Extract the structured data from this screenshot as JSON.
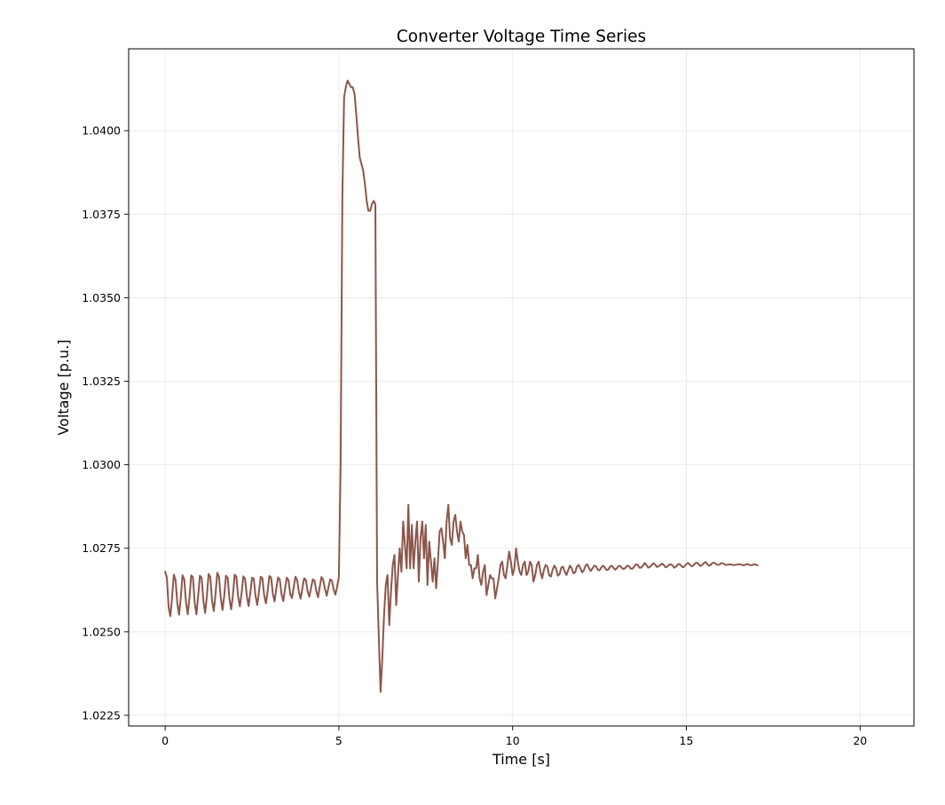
{
  "chart_data": {
    "type": "line",
    "title": "Converter Voltage Time Series",
    "xlabel": "Time [s]",
    "ylabel": "Voltage [p.u.]",
    "xlim": [
      -1.05,
      21.55
    ],
    "ylim": [
      1.02218,
      1.04245
    ],
    "xticks": [
      0,
      5,
      10,
      15,
      20
    ],
    "xtick_labels": [
      "0",
      "5",
      "10",
      "15",
      "20"
    ],
    "yticks": [
      1.0225,
      1.025,
      1.0275,
      1.03,
      1.0325,
      1.035,
      1.0375,
      1.04
    ],
    "ytick_labels": [
      "1.0225",
      "1.0250",
      "1.0275",
      "1.0300",
      "1.0325",
      "1.0350",
      "1.0375",
      "1.0400"
    ],
    "grid": true,
    "legend": "none",
    "x_step": 0.05,
    "series": [
      {
        "color": "#8c564b",
        "x_start": 0,
        "values": [
          1.0268,
          1.02662,
          1.02573,
          1.02547,
          1.02604,
          1.02671,
          1.02655,
          1.02586,
          1.02551,
          1.02603,
          1.02669,
          1.02657,
          1.02589,
          1.02552,
          1.02602,
          1.02669,
          1.02663,
          1.02588,
          1.02552,
          1.02607,
          1.02668,
          1.02662,
          1.02594,
          1.02556,
          1.02605,
          1.02673,
          1.02664,
          1.02593,
          1.02562,
          1.02613,
          1.02677,
          1.02665,
          1.02602,
          1.02565,
          1.02607,
          1.02668,
          1.02662,
          1.02599,
          1.02567,
          1.02609,
          1.02671,
          1.02665,
          1.02605,
          1.02576,
          1.02615,
          1.02666,
          1.02659,
          1.02608,
          1.02577,
          1.02615,
          1.02662,
          1.02659,
          1.02608,
          1.0258,
          1.02619,
          1.02665,
          1.0266,
          1.02609,
          1.02585,
          1.02622,
          1.02667,
          1.02662,
          1.02613,
          1.02591,
          1.0263,
          1.02663,
          1.02656,
          1.02612,
          1.02592,
          1.02629,
          1.02662,
          1.02655,
          1.02613,
          1.02601,
          1.02633,
          1.02665,
          1.02654,
          1.0262,
          1.02599,
          1.02631,
          1.0266,
          1.02655,
          1.02621,
          1.02605,
          1.02632,
          1.02657,
          1.02653,
          1.02622,
          1.02603,
          1.02635,
          1.02664,
          1.02655,
          1.02628,
          1.02608,
          1.02633,
          1.02657,
          1.02653,
          1.02626,
          1.02611,
          1.02636,
          1.02664,
          1.03,
          1.038,
          1.041,
          1.0413,
          1.0415,
          1.0414,
          1.0413,
          1.0413,
          1.0411,
          1.0405,
          1.0398,
          1.0392,
          1.039,
          1.0388,
          1.0384,
          1.0379,
          1.0376,
          1.0376,
          1.0378,
          1.0379,
          1.0378,
          1.0265,
          1.0248,
          1.0232,
          1.0242,
          1.0255,
          1.0264,
          1.0267,
          1.0252,
          1.0262,
          1.027,
          1.0273,
          1.0258,
          1.0267,
          1.0275,
          1.0268,
          1.0283,
          1.0276,
          1.0269,
          1.0288,
          1.0269,
          1.0282,
          1.0269,
          1.0277,
          1.0283,
          1.0265,
          1.0278,
          1.0283,
          1.0272,
          1.0282,
          1.0264,
          1.0277,
          1.0271,
          1.0265,
          1.0272,
          1.0263,
          1.0271,
          1.028,
          1.0281,
          1.0277,
          1.0272,
          1.0283,
          1.0288,
          1.0278,
          1.0276,
          1.0283,
          1.0285,
          1.028,
          1.0277,
          1.0283,
          1.028,
          1.0279,
          1.0272,
          1.0276,
          1.027,
          1.027,
          1.0266,
          1.0269,
          1.0269,
          1.0273,
          1.0266,
          1.0264,
          1.0268,
          1.027,
          1.0261,
          1.0264,
          1.0267,
          1.0266,
          1.0266,
          1.026,
          1.0263,
          1.0266,
          1.027,
          1.0271,
          1.0267,
          1.0266,
          1.027,
          1.0274,
          1.0271,
          1.0267,
          1.0269,
          1.0275,
          1.0271,
          1.0268,
          1.0267,
          1.027,
          1.0271,
          1.0267,
          1.0268,
          1.0271,
          1.027,
          1.0265,
          1.0267,
          1.027,
          1.0271,
          1.0268,
          1.0266,
          1.02685,
          1.027,
          1.02695,
          1.0267,
          1.02665,
          1.02685,
          1.02698,
          1.0269,
          1.02668,
          1.02672,
          1.02692,
          1.02695,
          1.0268,
          1.0267,
          1.02685,
          1.02698,
          1.0269,
          1.02675,
          1.02678,
          1.02695,
          1.027,
          1.0269,
          1.02678,
          1.02684,
          1.02698,
          1.02702,
          1.0269,
          1.02682,
          1.0269,
          1.02698,
          1.02696,
          1.02686,
          1.02684,
          1.02692,
          1.02698,
          1.02693,
          1.02685,
          1.02686,
          1.02694,
          1.02698,
          1.02692,
          1.02686,
          1.0269,
          1.02697,
          1.02697,
          1.0269,
          1.02688,
          1.02692,
          1.02698,
          1.02696,
          1.02689,
          1.02689,
          1.02695,
          1.02702,
          1.027,
          1.02692,
          1.02692,
          1.02698,
          1.02706,
          1.027,
          1.02692,
          1.02694,
          1.02699,
          1.02705,
          1.02702,
          1.02694,
          1.02696,
          1.027,
          1.02704,
          1.027,
          1.02693,
          1.02695,
          1.027,
          1.02702,
          1.02699,
          1.02692,
          1.02695,
          1.02701,
          1.02703,
          1.02698,
          1.02693,
          1.02696,
          1.02703,
          1.02706,
          1.02701,
          1.02696,
          1.02698,
          1.02705,
          1.02707,
          1.02703,
          1.02697,
          1.027,
          1.02705,
          1.02709,
          1.02703,
          1.02698,
          1.027,
          1.02706,
          1.02707,
          1.02703,
          1.027,
          1.02701,
          1.02705,
          1.02705,
          1.02702,
          1.027,
          1.02701,
          1.02702,
          1.02701,
          1.027,
          1.027,
          1.02701,
          1.02702,
          1.02702,
          1.027,
          1.02699,
          1.02701,
          1.02703,
          1.02701,
          1.02699,
          1.027,
          1.02702,
          1.02701,
          1.02699
        ]
      }
    ]
  }
}
